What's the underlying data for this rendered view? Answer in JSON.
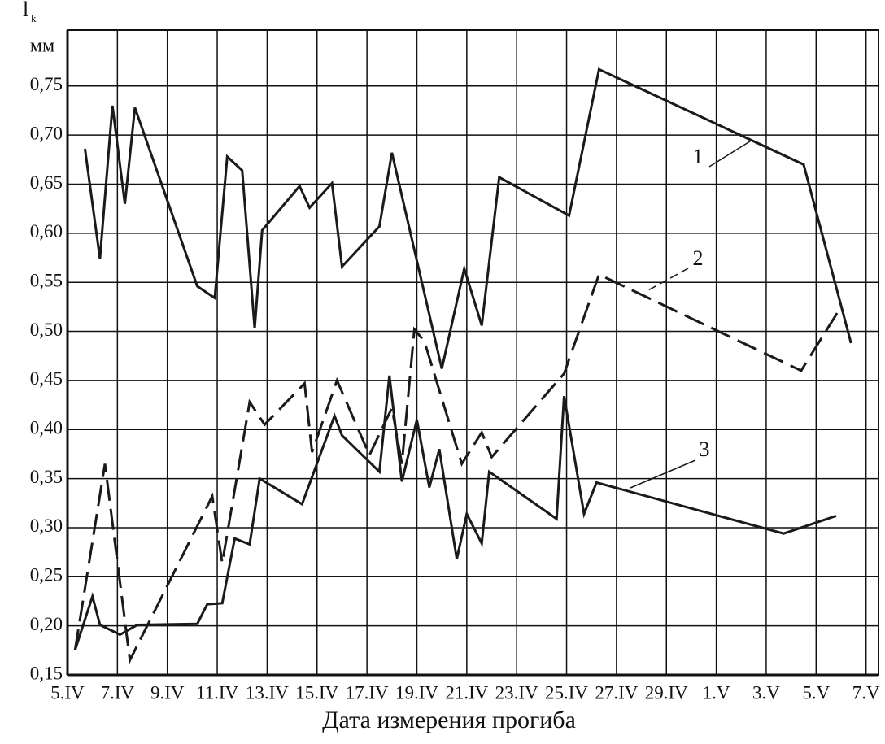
{
  "chart_data": {
    "type": "line",
    "ylabel": "l",
    "ylabel_subscript": "k",
    "yunit": "мм",
    "xlabel": "Дата измерения прогиба",
    "xlim": [
      0,
      32.5
    ],
    "xticks": [
      {
        "value": 0,
        "label": "5.IV"
      },
      {
        "value": 2,
        "label": "7.IV"
      },
      {
        "value": 4,
        "label": "9.IV"
      },
      {
        "value": 6,
        "label": "11.IV"
      },
      {
        "value": 8,
        "label": "13.IV"
      },
      {
        "value": 10,
        "label": "15.IV"
      },
      {
        "value": 12,
        "label": "17.IV"
      },
      {
        "value": 14,
        "label": "19.IV"
      },
      {
        "value": 16,
        "label": "21.IV"
      },
      {
        "value": 18,
        "label": "23.IV"
      },
      {
        "value": 20,
        "label": "25.IV"
      },
      {
        "value": 22,
        "label": "27.IV"
      },
      {
        "value": 24,
        "label": "29.IV"
      },
      {
        "value": 26,
        "label": "1.V"
      },
      {
        "value": 28,
        "label": "3.V"
      },
      {
        "value": 30,
        "label": "5.V"
      },
      {
        "value": 32,
        "label": "7.V"
      }
    ],
    "ylim": [
      0.15,
      0.807
    ],
    "yticks": [
      {
        "value": 0.15,
        "label": "0,15"
      },
      {
        "value": 0.2,
        "label": "0,20"
      },
      {
        "value": 0.25,
        "label": "0,25"
      },
      {
        "value": 0.3,
        "label": "0,30"
      },
      {
        "value": 0.35,
        "label": "0,35"
      },
      {
        "value": 0.4,
        "label": "0,40"
      },
      {
        "value": 0.45,
        "label": "0,45"
      },
      {
        "value": 0.5,
        "label": "0,50"
      },
      {
        "value": 0.55,
        "label": "0,55"
      },
      {
        "value": 0.6,
        "label": "0,60"
      },
      {
        "value": 0.65,
        "label": "0,65"
      },
      {
        "value": 0.7,
        "label": "0,70"
      },
      {
        "value": 0.75,
        "label": "0,75"
      }
    ],
    "grid": true,
    "series": [
      {
        "name": "1",
        "color": "#1a1a1a",
        "style": "solid",
        "x": [
          0.7,
          1.3,
          1.8,
          2.3,
          2.7,
          5.2,
          5.9,
          6.4,
          7.0,
          7.5,
          7.8,
          9.3,
          9.7,
          10.6,
          11.0,
          12.5,
          13.0,
          15.0,
          15.9,
          16.6,
          17.3,
          20.1,
          21.3,
          29.5,
          31.4
        ],
        "values": [
          0.686,
          0.574,
          0.73,
          0.63,
          0.728,
          0.546,
          0.534,
          0.678,
          0.664,
          0.503,
          0.603,
          0.648,
          0.626,
          0.651,
          0.566,
          0.607,
          0.682,
          0.462,
          0.564,
          0.506,
          0.657,
          0.618,
          0.767,
          0.67,
          0.488
        ]
      },
      {
        "name": "2",
        "color": "#1a1a1a",
        "style": "dashed",
        "x": [
          0.3,
          1.5,
          2.5,
          5.8,
          6.2,
          7.3,
          7.9,
          9.5,
          9.8,
          10.8,
          12.1,
          13.0,
          13.4,
          13.9,
          14.3,
          15.8,
          16.6,
          17.0,
          19.9,
          21.3,
          29.4,
          31.0
        ],
        "values": [
          0.175,
          0.365,
          0.165,
          0.332,
          0.264,
          0.428,
          0.405,
          0.447,
          0.377,
          0.45,
          0.374,
          0.422,
          0.365,
          0.502,
          0.49,
          0.365,
          0.397,
          0.372,
          0.457,
          0.558,
          0.46,
          0.525
        ]
      },
      {
        "name": "3",
        "color": "#1a1a1a",
        "style": "solid",
        "x": [
          0.3,
          1.0,
          1.3,
          2.1,
          2.8,
          5.2,
          5.6,
          6.2,
          6.7,
          7.3,
          7.7,
          9.4,
          10.7,
          11.0,
          12.5,
          12.9,
          13.4,
          14.0,
          14.5,
          14.9,
          15.6,
          16.0,
          16.6,
          16.9,
          19.6,
          19.9,
          20.7,
          21.2,
          28.7,
          30.8
        ],
        "values": [
          0.175,
          0.23,
          0.201,
          0.191,
          0.201,
          0.202,
          0.222,
          0.223,
          0.289,
          0.283,
          0.35,
          0.324,
          0.414,
          0.394,
          0.357,
          0.455,
          0.347,
          0.41,
          0.341,
          0.38,
          0.268,
          0.314,
          0.284,
          0.357,
          0.309,
          0.434,
          0.314,
          0.346,
          0.294,
          0.312
        ]
      }
    ]
  }
}
